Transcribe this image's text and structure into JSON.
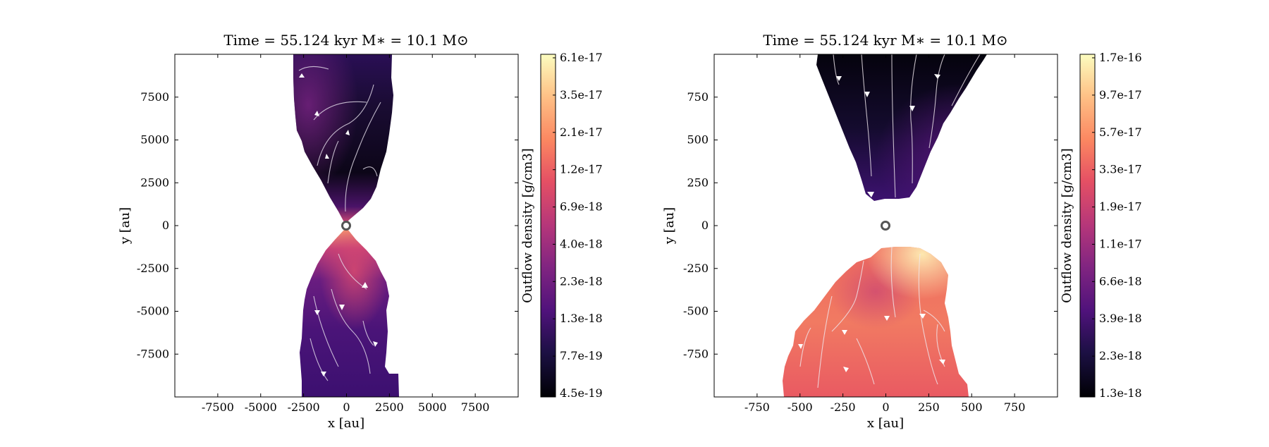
{
  "chart_data": [
    {
      "type": "heatmap",
      "title": "Time = 55.124 kyr    M$_*$ = 10.1 M$_\\odot$",
      "title_display": "Time = 55.124 kyr    M∗ = 10.1 M⊙",
      "xlabel": "x [au]",
      "ylabel": "y [au]",
      "xlim": [
        -10000,
        10000
      ],
      "ylim": [
        -10000,
        10000
      ],
      "xticks": [
        -7500,
        -5000,
        -2500,
        0,
        2500,
        5000,
        7500
      ],
      "yticks": [
        7500,
        5000,
        2500,
        0,
        -2500,
        -5000,
        -7500
      ],
      "colorbar": {
        "label": "Outflow density [g/cm3]",
        "ticks": [
          "6.1e-17",
          "3.5e-17",
          "2.1e-17",
          "1.2e-17",
          "6.9e-18",
          "4.0e-18",
          "2.3e-18",
          "1.3e-18",
          "7.7e-19",
          "4.5e-19"
        ],
        "colormap": "magma",
        "scale": "log"
      },
      "upper_lobe_color": "dark",
      "lower_lobe_color": "purple",
      "star_marker": [
        0,
        0
      ]
    },
    {
      "type": "heatmap",
      "title": "Time = 55.124 kyr    M$_*$ = 10.1 M$_\\odot$",
      "title_display": "Time = 55.124 kyr    M∗ = 10.1 M⊙",
      "xlabel": "x [au]",
      "ylabel": "y [au]",
      "xlim": [
        -1000,
        1000
      ],
      "ylim": [
        -1000,
        1000
      ],
      "xticks": [
        -750,
        -500,
        -250,
        0,
        250,
        500,
        750
      ],
      "yticks": [
        750,
        500,
        250,
        0,
        -250,
        -500,
        -750
      ],
      "colorbar": {
        "label": "Outflow density [g/cm3]",
        "ticks": [
          "1.7e-16",
          "9.7e-17",
          "5.7e-17",
          "3.3e-17",
          "1.9e-17",
          "1.1e-17",
          "6.6e-18",
          "3.9e-18",
          "2.3e-18",
          "1.3e-18"
        ],
        "colormap": "magma",
        "scale": "log"
      },
      "upper_lobe_color": "dark",
      "lower_lobe_color": "orange",
      "star_marker": [
        0,
        0
      ]
    }
  ]
}
